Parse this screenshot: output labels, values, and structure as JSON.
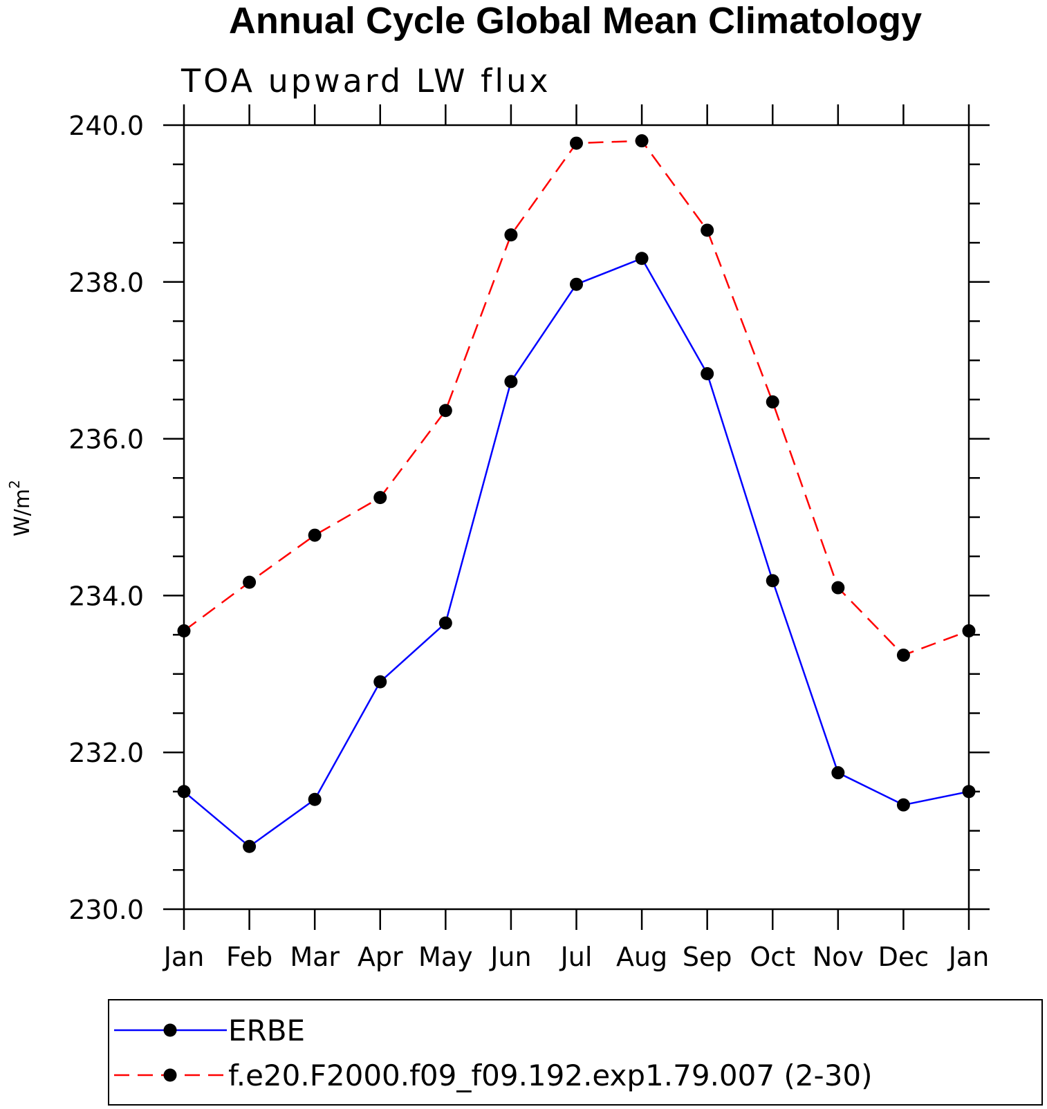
{
  "chart_data": {
    "type": "line",
    "title": "Annual Cycle Global Mean Climatology",
    "subtitle": "TOA upward LW flux",
    "xlabel": "",
    "ylabel": "W/m",
    "ylabel_superscript": "2",
    "ylim": [
      230.0,
      240.0
    ],
    "y_ticks": [
      "230.0",
      "232.0",
      "234.0",
      "236.0",
      "238.0",
      "240.0"
    ],
    "categories": [
      "Jan",
      "Feb",
      "Mar",
      "Apr",
      "May",
      "Jun",
      "Jul",
      "Aug",
      "Sep",
      "Oct",
      "Nov",
      "Dec",
      "Jan"
    ],
    "series": [
      {
        "name": "ERBE",
        "color": "#0000ff",
        "dash": "solid",
        "values": [
          231.5,
          230.8,
          231.4,
          232.9,
          233.65,
          236.73,
          237.97,
          238.3,
          236.83,
          234.19,
          231.74,
          231.33,
          231.5
        ]
      },
      {
        "name": "f.e20.F2000.f09_f09.192.exp1.79.007 (2-30)",
        "color": "#ff0000",
        "dash": "dashed",
        "values": [
          233.55,
          234.17,
          234.77,
          235.25,
          236.36,
          238.6,
          239.77,
          239.8,
          238.66,
          236.47,
          234.1,
          233.24,
          233.55
        ]
      }
    ],
    "grid": false,
    "legend_position": "bottom"
  }
}
